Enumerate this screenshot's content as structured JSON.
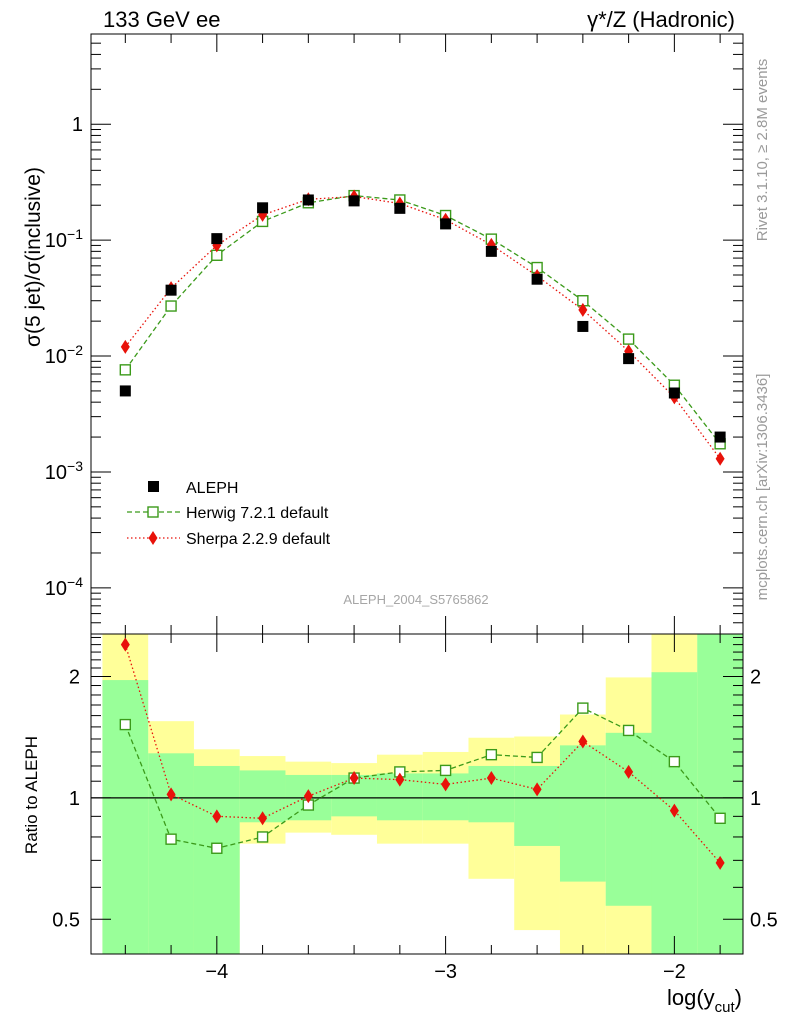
{
  "header": {
    "left_title": "133 GeV ee",
    "right_title": "γ*/Z (Hadronic)"
  },
  "side_text": {
    "rivet": "Rivet 3.1.10, ≥ 2.8M events",
    "mcplots": "mcplots.cern.ch [arXiv:1306.3436]"
  },
  "watermark": "ALEPH_2004_S5765862",
  "chart_data": [
    {
      "type": "scatter",
      "title": "",
      "ylabel": "σ(5 jet)/σ(inclusive)",
      "xlabel": "log(y_cut)",
      "xlim": [
        -4.55,
        -1.7
      ],
      "ylim": [
        4e-05,
        6
      ],
      "yscale": "log",
      "ytick_labels": [
        "10^-4",
        "10^-3",
        "10^-2",
        "10^-1",
        "1"
      ],
      "legend_position": "bottom-left",
      "x": [
        -4.4,
        -4.2,
        -4.0,
        -3.8,
        -3.6,
        -3.4,
        -3.2,
        -3.0,
        -2.8,
        -2.6,
        -2.4,
        -2.2,
        -2.0,
        -1.8
      ],
      "series": [
        {
          "name": "ALEPH",
          "color": "#000000",
          "marker": "filled-square",
          "values": [
            0.005,
            0.037,
            0.103,
            0.19,
            0.222,
            0.218,
            0.188,
            0.138,
            0.08,
            0.046,
            0.018,
            0.0095,
            0.0048,
            0.002
          ]
        },
        {
          "name": "Herwig 7.2.1 default",
          "color": "#3b9a1a",
          "marker": "open-square",
          "line": "dashed",
          "values": [
            0.0076,
            0.027,
            0.074,
            0.145,
            0.21,
            0.242,
            0.222,
            0.163,
            0.102,
            0.058,
            0.03,
            0.014,
            0.0056,
            0.00175
          ]
        },
        {
          "name": "Sherpa 2.2.9 default",
          "color": "#e8120a",
          "marker": "filled-diamond",
          "line": "dotted",
          "values": [
            0.012,
            0.0385,
            0.09,
            0.165,
            0.225,
            0.238,
            0.207,
            0.15,
            0.091,
            0.049,
            0.025,
            0.011,
            0.0044,
            0.0013
          ]
        }
      ]
    },
    {
      "type": "scatter",
      "title": "",
      "ylabel": "Ratio to ALEPH",
      "xlabel": "log(y_cut)",
      "xlim": [
        -4.55,
        -1.7
      ],
      "ylim": [
        0.41,
        2.55
      ],
      "yscale": "log",
      "ytick_labels": [
        "0.5",
        "1",
        "2"
      ],
      "xtick_labels": [
        "−4",
        "−3",
        "−2"
      ],
      "reference_line": 1,
      "x": [
        -4.4,
        -4.2,
        -4.0,
        -3.8,
        -3.6,
        -3.4,
        -3.2,
        -3.0,
        -2.8,
        -2.6,
        -2.4,
        -2.2,
        -2.0,
        -1.8
      ],
      "uncertainty_bands": {
        "bin_edges": [
          -4.5,
          -4.3,
          -4.1,
          -3.9,
          -3.7,
          -3.5,
          -3.3,
          -3.1,
          -2.9,
          -2.7,
          -2.5,
          -2.3,
          -2.1,
          -1.9,
          -1.7
        ],
        "yellow_total": [
          [
            0.41,
            2.55
          ],
          [
            0.41,
            1.55
          ],
          [
            0.41,
            1.32
          ],
          [
            0.77,
            1.27
          ],
          [
            0.82,
            1.23
          ],
          [
            0.81,
            1.22
          ],
          [
            0.77,
            1.28
          ],
          [
            0.77,
            1.3
          ],
          [
            0.63,
            1.41
          ],
          [
            0.47,
            1.42
          ],
          [
            0.41,
            1.61
          ],
          [
            0.41,
            1.99
          ],
          [
            0.41,
            2.55
          ],
          [
            0.41,
            2.55
          ]
        ],
        "green_stat": [
          [
            0.41,
            1.96
          ],
          [
            0.41,
            1.29
          ],
          [
            0.41,
            1.2
          ],
          [
            0.87,
            1.17
          ],
          [
            0.88,
            1.14
          ],
          [
            0.9,
            1.14
          ],
          [
            0.88,
            1.15
          ],
          [
            0.88,
            1.15
          ],
          [
            0.87,
            1.2
          ],
          [
            0.76,
            1.2
          ],
          [
            0.62,
            1.35
          ],
          [
            0.54,
            1.45
          ],
          [
            0.41,
            2.05
          ],
          [
            0.41,
            2.55
          ]
        ],
        "colors": {
          "yellow": "#ffff99",
          "green": "#99ff99"
        }
      },
      "series": [
        {
          "name": "Herwig 7.2.1 default",
          "color": "#3b9a1a",
          "marker": "open-square",
          "line": "dashed",
          "values": [
            1.52,
            0.79,
            0.75,
            0.8,
            0.96,
            1.12,
            1.16,
            1.17,
            1.28,
            1.26,
            1.67,
            1.47,
            1.23,
            0.89
          ]
        },
        {
          "name": "Sherpa 2.2.9 default",
          "color": "#e8120a",
          "marker": "filled-diamond",
          "line": "dotted",
          "values": [
            2.4,
            1.02,
            0.9,
            0.89,
            1.01,
            1.12,
            1.11,
            1.08,
            1.12,
            1.05,
            1.38,
            1.16,
            0.93,
            0.69
          ]
        }
      ]
    }
  ]
}
